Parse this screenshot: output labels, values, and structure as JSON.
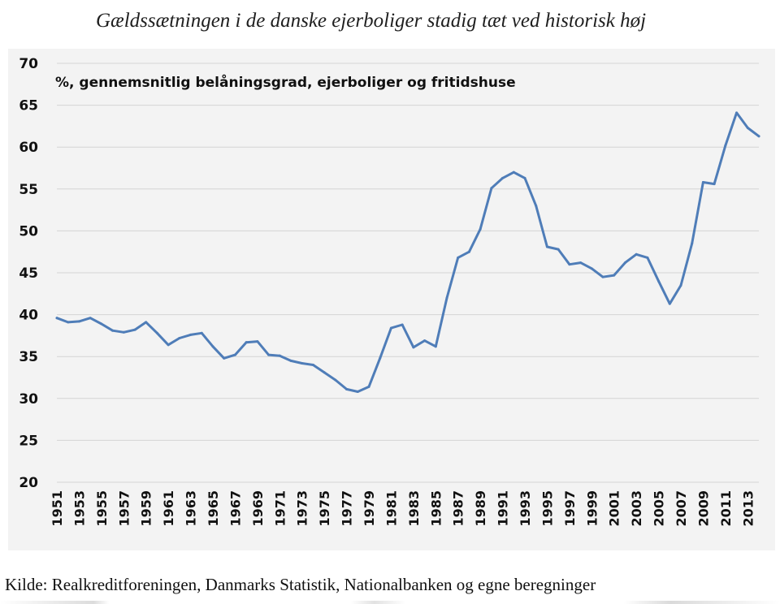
{
  "page": {
    "title": "Gældssætningen i de danske ejerboliger stadig tæt ved historisk høj",
    "source": "Kilde: Realkreditforeningen, Danmarks Statistik, Nationalbanken og egne beregninger"
  },
  "chart_data": {
    "type": "line",
    "title": "Gældssætningen i de danske ejerboliger stadig tæt ved historisk høj",
    "subtitle": "%, gennemsnitlig belåningsgrad, ejerboliger og fritidshuse",
    "xlabel": "",
    "ylabel": "",
    "ylim": [
      20,
      70
    ],
    "yticks": [
      "20",
      "25",
      "30",
      "35",
      "40",
      "45",
      "50",
      "55",
      "60",
      "65",
      "70"
    ],
    "grid": "horizontal",
    "line_color": "#4f7db8",
    "x": [
      1951,
      1952,
      1953,
      1954,
      1955,
      1956,
      1957,
      1958,
      1959,
      1960,
      1961,
      1962,
      1963,
      1964,
      1965,
      1966,
      1967,
      1968,
      1969,
      1970,
      1971,
      1972,
      1973,
      1974,
      1975,
      1976,
      1977,
      1978,
      1979,
      1980,
      1981,
      1982,
      1983,
      1984,
      1985,
      1986,
      1987,
      1988,
      1989,
      1990,
      1991,
      1992,
      1993,
      1994,
      1995,
      1996,
      1997,
      1998,
      1999,
      2000,
      2001,
      2002,
      2003,
      2004,
      2005,
      2006,
      2007,
      2008,
      2009,
      2010,
      2011,
      2012,
      2013,
      2014
    ],
    "xtick_labels": [
      "1951",
      "1953",
      "1955",
      "1957",
      "1959",
      "1961",
      "1963",
      "1965",
      "1967",
      "1969",
      "1971",
      "1973",
      "1975",
      "1977",
      "1979",
      "1981",
      "1983",
      "1985",
      "1987",
      "1989",
      "1991",
      "1993",
      "1995",
      "1997",
      "1999",
      "2001",
      "2003",
      "2005",
      "2007",
      "2009",
      "2011",
      "2013"
    ],
    "series": [
      {
        "name": "%, gennemsnitlig belåningsgrad, ejerboliger og fritidshuse",
        "values": [
          39.6,
          39.1,
          39.2,
          39.6,
          38.9,
          38.1,
          37.9,
          38.2,
          39.1,
          37.8,
          36.4,
          37.2,
          37.6,
          37.8,
          36.2,
          34.8,
          35.2,
          36.7,
          36.8,
          35.2,
          35.1,
          34.5,
          34.2,
          34.0,
          33.1,
          32.2,
          31.1,
          30.8,
          31.4,
          34.8,
          38.4,
          38.8,
          36.1,
          36.9,
          36.2,
          42.0,
          46.8,
          47.5,
          50.2,
          55.1,
          56.3,
          57.0,
          56.3,
          53.0,
          48.1,
          47.8,
          46.0,
          46.2,
          45.5,
          44.5,
          44.7,
          46.2,
          47.2,
          46.8,
          44.0,
          41.3,
          43.5,
          48.5,
          55.8,
          55.6,
          60.2,
          64.1,
          62.3,
          61.3
        ]
      }
    ]
  }
}
